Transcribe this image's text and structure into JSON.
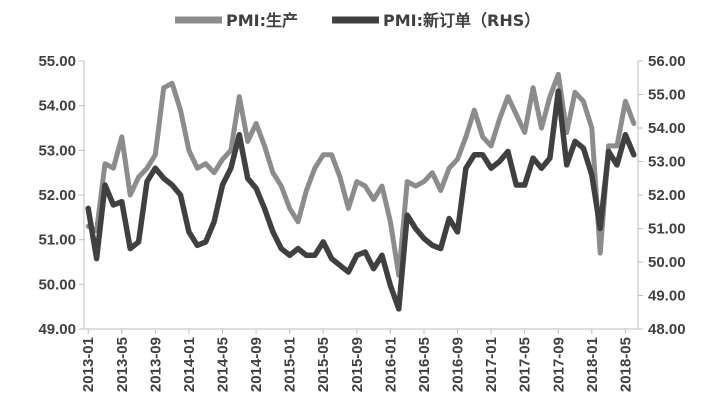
{
  "chart_data": {
    "type": "line",
    "x": [
      "2013-01",
      "2013-02",
      "2013-03",
      "2013-04",
      "2013-05",
      "2013-06",
      "2013-07",
      "2013-08",
      "2013-09",
      "2013-10",
      "2013-11",
      "2013-12",
      "2014-01",
      "2014-02",
      "2014-03",
      "2014-04",
      "2014-05",
      "2014-06",
      "2014-07",
      "2014-08",
      "2014-09",
      "2014-10",
      "2014-11",
      "2014-12",
      "2015-01",
      "2015-02",
      "2015-03",
      "2015-04",
      "2015-05",
      "2015-06",
      "2015-07",
      "2015-08",
      "2015-09",
      "2015-10",
      "2015-11",
      "2015-12",
      "2016-01",
      "2016-02",
      "2016-03",
      "2016-04",
      "2016-05",
      "2016-06",
      "2016-07",
      "2016-08",
      "2016-09",
      "2016-10",
      "2016-11",
      "2016-12",
      "2017-01",
      "2017-02",
      "2017-03",
      "2017-04",
      "2017-05",
      "2017-06",
      "2017-07",
      "2017-08",
      "2017-09",
      "2017-10",
      "2017-11",
      "2017-12",
      "2018-01",
      "2018-02",
      "2018-03",
      "2018-04",
      "2018-05",
      "2018-06"
    ],
    "x_tick_labels": [
      "2013-01",
      "2013-05",
      "2013-09",
      "2014-01",
      "2014-05",
      "2014-09",
      "2015-01",
      "2015-05",
      "2015-09",
      "2016-01",
      "2016-05",
      "2016-09",
      "2017-01",
      "2017-05",
      "2017-09",
      "2018-01",
      "2018-05"
    ],
    "left_axis": {
      "ylim": [
        49.0,
        55.0
      ],
      "ticks": [
        "49.00",
        "50.00",
        "51.00",
        "52.00",
        "53.00",
        "54.00",
        "55.00"
      ]
    },
    "right_axis": {
      "ylim": [
        48.0,
        56.0
      ],
      "ticks": [
        "48.00",
        "49.00",
        "50.00",
        "51.00",
        "52.00",
        "53.00",
        "54.00",
        "55.00",
        "56.00"
      ]
    },
    "legend_position": "top",
    "series": [
      {
        "name": "PMI:生产",
        "axis": "left",
        "color": "#8c8c8c",
        "values": [
          51.3,
          51.2,
          52.7,
          52.6,
          53.3,
          52.0,
          52.4,
          52.6,
          52.9,
          54.4,
          54.5,
          53.9,
          53.0,
          52.6,
          52.7,
          52.5,
          52.8,
          53.0,
          54.2,
          53.2,
          53.6,
          53.1,
          52.5,
          52.2,
          51.7,
          51.4,
          52.1,
          52.6,
          52.9,
          52.9,
          52.4,
          51.7,
          52.3,
          52.2,
          51.9,
          52.2,
          51.4,
          50.2,
          52.3,
          52.2,
          52.3,
          52.5,
          52.1,
          52.6,
          52.8,
          53.3,
          53.9,
          53.3,
          53.1,
          53.7,
          54.2,
          53.8,
          53.4,
          54.4,
          53.5,
          54.2,
          54.7,
          53.4,
          54.3,
          54.1,
          53.5,
          50.7,
          53.1,
          53.1,
          54.1,
          53.6
        ]
      },
      {
        "name": "PMI:新订单（RHS）",
        "axis": "right",
        "color": "#404040",
        "values": [
          51.6,
          50.1,
          52.3,
          51.7,
          51.8,
          50.4,
          50.6,
          52.4,
          52.8,
          52.5,
          52.3,
          52.0,
          50.9,
          50.5,
          50.6,
          51.2,
          52.3,
          52.8,
          53.8,
          52.5,
          52.2,
          51.6,
          50.9,
          50.4,
          50.2,
          50.4,
          50.2,
          50.2,
          50.6,
          50.1,
          49.9,
          49.7,
          50.2,
          50.3,
          49.8,
          50.2,
          49.3,
          48.6,
          51.4,
          51.0,
          50.7,
          50.5,
          50.4,
          51.3,
          50.9,
          52.8,
          53.2,
          53.2,
          52.8,
          53.0,
          53.3,
          52.3,
          52.3,
          53.1,
          52.8,
          53.1,
          55.1,
          52.9,
          53.6,
          53.4,
          52.6,
          51.0,
          53.3,
          52.9,
          53.8,
          53.2
        ]
      }
    ]
  }
}
